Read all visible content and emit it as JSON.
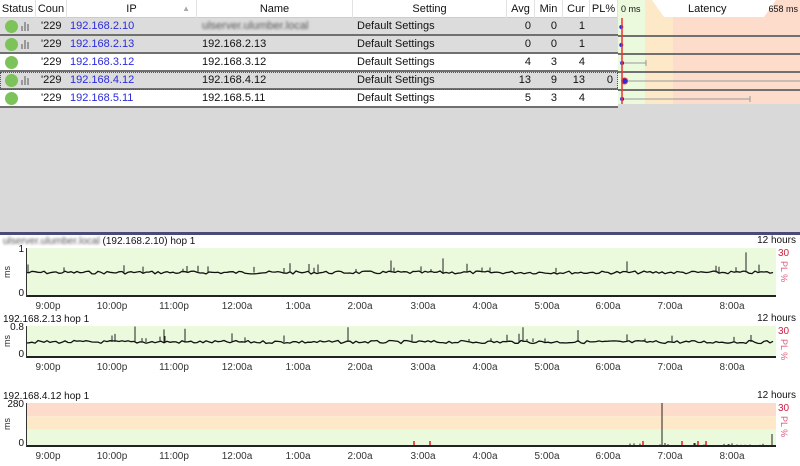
{
  "table": {
    "headers": {
      "status": "Status",
      "count": "Coun",
      "ip": "IP",
      "name": "Name",
      "setting": "Setting",
      "avg": "Avg",
      "min": "Min",
      "cur": "Cur",
      "pl": "PL%",
      "latency": "Latency",
      "lat_min": "0 ms",
      "lat_max": "658 ms"
    },
    "rows": [
      {
        "count": "'229",
        "ip": "192.168.2.10",
        "name": "ulserver.ulumber.local",
        "setting": "Default Settings",
        "avg": "0",
        "min": "0",
        "cur": "1",
        "pl": "",
        "name_blurred": true,
        "graph": true
      },
      {
        "count": "'229",
        "ip": "192.168.2.13",
        "name": "192.168.2.13",
        "setting": "Default Settings",
        "avg": "0",
        "min": "0",
        "cur": "1",
        "pl": "",
        "graph": true
      },
      {
        "count": "'229",
        "ip": "192.168.3.12",
        "name": "192.168.3.12",
        "setting": "Default Settings",
        "avg": "4",
        "min": "3",
        "cur": "4",
        "pl": "",
        "graph": false
      },
      {
        "count": "'229",
        "ip": "192.168.4.12",
        "name": "192.168.4.12",
        "setting": "Default Settings",
        "avg": "13",
        "min": "9",
        "cur": "13",
        "pl": "0",
        "graph": true,
        "selected": true
      },
      {
        "count": "'229",
        "ip": "192.168.5.11",
        "name": "192.168.5.11",
        "setting": "Default Settings",
        "avg": "5",
        "min": "3",
        "cur": "4",
        "pl": "",
        "graph": false
      }
    ]
  },
  "charts": [
    {
      "title_blurred": "ulserver.ulumber.local",
      "title": "(192.168.2.10) hop 1",
      "span": "12 hours",
      "y_max": "1",
      "y_min": "0",
      "y_unit": "ms",
      "pl_max": "30",
      "pl_label": "PL %"
    },
    {
      "title": "192.168.2.13 hop 1",
      "span": "12 hours",
      "y_max": "0.8",
      "y_min": "0",
      "y_unit": "ms",
      "pl_max": "30",
      "pl_label": "PL %"
    },
    {
      "title": "192.168.4.12 hop 1",
      "span": "12 hours",
      "y_max": "280",
      "y_min": "0",
      "y_unit": "ms",
      "pl_max": "30",
      "pl_label": "PL %"
    }
  ],
  "time_labels": [
    "9:00p",
    "10:00p",
    "11:00p",
    "12:00a",
    "1:00a",
    "2:00a",
    "3:00a",
    "4:00a",
    "5:00a",
    "6:00a",
    "7:00a",
    "8:00a"
  ],
  "colors": {
    "good": "#ebf9dc",
    "warn": "#fde9c8",
    "bad": "#fddccb",
    "status_ok": "#7cc35a",
    "ip_link": "#2a2ae0",
    "pl": "#d02040"
  }
}
